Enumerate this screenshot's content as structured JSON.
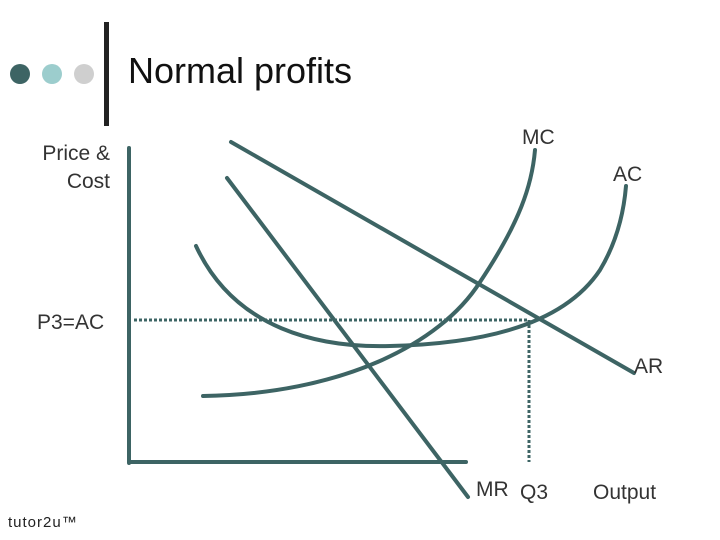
{
  "header": {
    "title": "Normal profits",
    "dots": [
      {
        "name": "dark-dot",
        "color": "#3d6464"
      },
      {
        "name": "teal-dot",
        "color": "#9ccdcd"
      },
      {
        "name": "grey-dot",
        "color": "#cfcfcf"
      }
    ]
  },
  "diagram": {
    "y_axis_label": "Price & Cost",
    "x_axis_label": "Output",
    "price_label": "P3=AC",
    "quantity_label": "Q3",
    "curves": {
      "mc": "MC",
      "ac": "AC",
      "ar": "AR",
      "mr": "MR"
    },
    "line_color": "#3d6464"
  },
  "footer": {
    "brand": "tutor2u™"
  }
}
